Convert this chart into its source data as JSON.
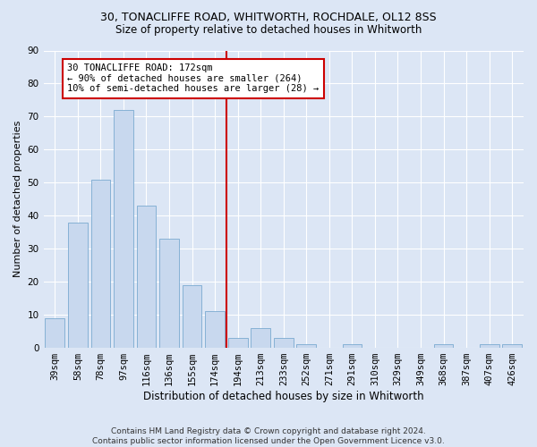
{
  "title1": "30, TONACLIFFE ROAD, WHITWORTH, ROCHDALE, OL12 8SS",
  "title2": "Size of property relative to detached houses in Whitworth",
  "xlabel": "Distribution of detached houses by size in Whitworth",
  "ylabel": "Number of detached properties",
  "categories": [
    "39sqm",
    "58sqm",
    "78sqm",
    "97sqm",
    "116sqm",
    "136sqm",
    "155sqm",
    "174sqm",
    "194sqm",
    "213sqm",
    "233sqm",
    "252sqm",
    "271sqm",
    "291sqm",
    "310sqm",
    "329sqm",
    "349sqm",
    "368sqm",
    "387sqm",
    "407sqm",
    "426sqm"
  ],
  "values": [
    9,
    38,
    51,
    72,
    43,
    33,
    19,
    11,
    3,
    6,
    3,
    1,
    0,
    1,
    0,
    0,
    0,
    1,
    0,
    1,
    1
  ],
  "bar_color": "#c8d8ee",
  "bar_edge_color": "#7aaad0",
  "bg_color": "#dce6f5",
  "grid_color": "#ffffff",
  "vline_color": "#cc0000",
  "annotation_text": "30 TONACLIFFE ROAD: 172sqm\n← 90% of detached houses are smaller (264)\n10% of semi-detached houses are larger (28) →",
  "annotation_box_color": "#ffffff",
  "annotation_box_edge": "#cc0000",
  "footnote": "Contains HM Land Registry data © Crown copyright and database right 2024.\nContains public sector information licensed under the Open Government Licence v3.0.",
  "ylim": [
    0,
    90
  ],
  "yticks": [
    0,
    10,
    20,
    30,
    40,
    50,
    60,
    70,
    80,
    90
  ],
  "title1_fontsize": 9,
  "title2_fontsize": 8.5,
  "xlabel_fontsize": 8.5,
  "ylabel_fontsize": 8,
  "tick_fontsize": 7.5,
  "ann_fontsize": 7.5,
  "footnote_fontsize": 6.5
}
